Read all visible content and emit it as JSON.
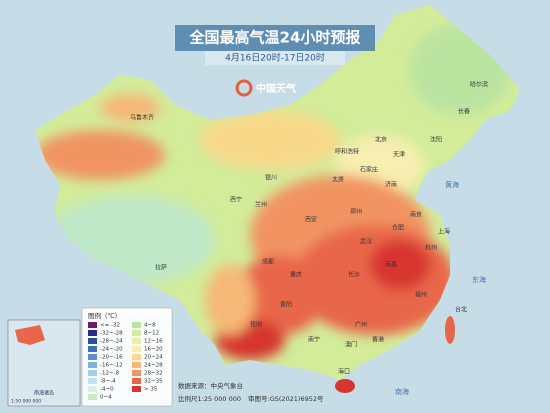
{
  "header": {
    "title": "全国最高气温24小时预报",
    "subtitle": "4月16日20时-17日20时",
    "logo": "中国天气"
  },
  "legend": {
    "title": "图例（℃）",
    "items": [
      {
        "label": "<= -32",
        "color": "#6d1a6e"
      },
      {
        "label": "-32~-28",
        "color": "#2a2a8a"
      },
      {
        "label": "-28~-24",
        "color": "#2c4f9c"
      },
      {
        "label": "-24~-20",
        "color": "#3c70b8"
      },
      {
        "label": "-20~-16",
        "color": "#5a90d0"
      },
      {
        "label": "-16~-12",
        "color": "#7eb0e0"
      },
      {
        "label": "-12~-8",
        "color": "#a2cdeb"
      },
      {
        "label": "-8~-4",
        "color": "#c2e2ee"
      },
      {
        "label": "-4~0",
        "color": "#d8efe8"
      },
      {
        "label": "0~4",
        "color": "#c8ecc0"
      },
      {
        "label": "4~8",
        "color": "#b9e4a0"
      },
      {
        "label": "8~12",
        "color": "#d2ec9a"
      },
      {
        "label": "12~16",
        "color": "#e6f2a2"
      },
      {
        "label": "16~20",
        "color": "#f7eeb0"
      },
      {
        "label": "20~24",
        "color": "#f8d98a"
      },
      {
        "label": "24~28",
        "color": "#f6b877"
      },
      {
        "label": "28~32",
        "color": "#f19462"
      },
      {
        "label": "32~35",
        "color": "#e8664a"
      },
      {
        "label": "> 35",
        "color": "#d7352e"
      }
    ]
  },
  "cities": [
    "乌鲁木齐",
    "拉萨",
    "西宁",
    "兰州",
    "银川",
    "呼和浩特",
    "北京",
    "天津",
    "石家庄",
    "太原",
    "济南",
    "郑州",
    "西安",
    "成都",
    "重庆",
    "贵阳",
    "昆明",
    "武汉",
    "长沙",
    "南昌",
    "合肥",
    "南京",
    "上海",
    "杭州",
    "福州",
    "台北",
    "广州",
    "南宁",
    "海口",
    "香港",
    "澳门",
    "沈阳",
    "长春",
    "哈尔滨"
  ],
  "seas": [
    "黄海",
    "东海",
    "南海"
  ],
  "inset": {
    "label": "南海诸岛",
    "scale": "1:50 000 000"
  },
  "footer": {
    "source": "数据来源：中央气象台",
    "scale": "比例尺1:25 000 000",
    "approval": "审图号:GS(2021)6952号"
  }
}
